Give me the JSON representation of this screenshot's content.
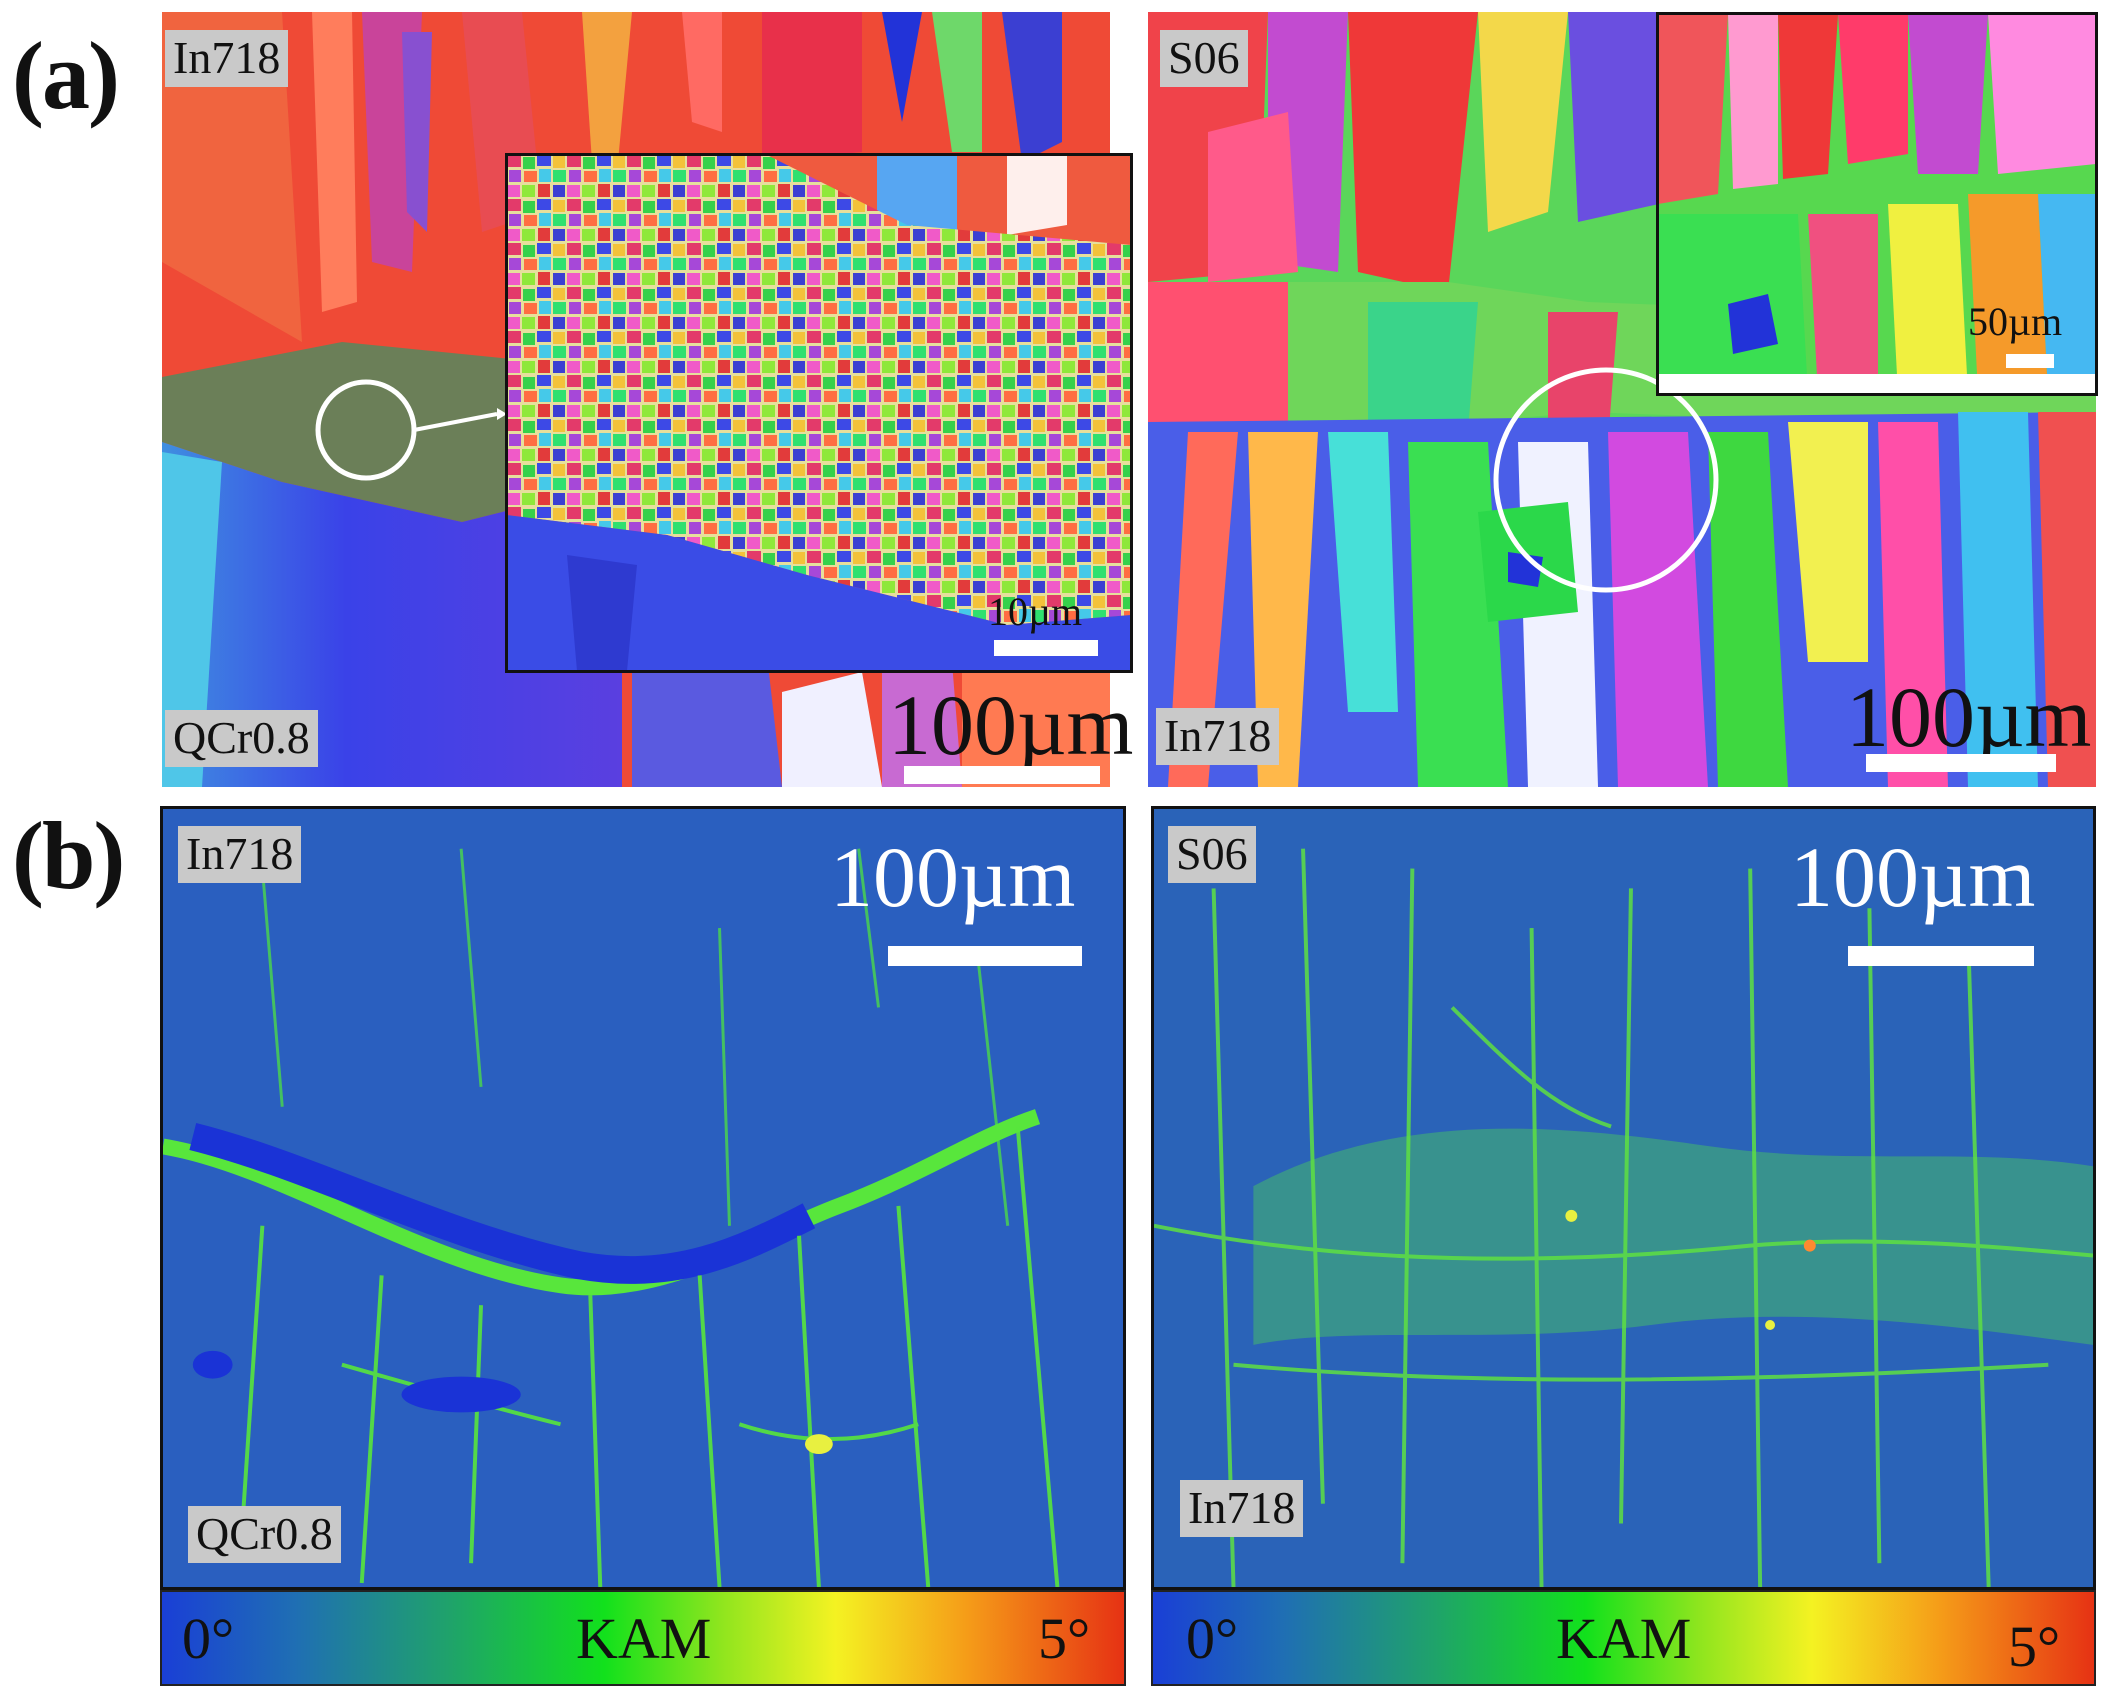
{
  "panels": {
    "a": {
      "letter": "(a)",
      "left": {
        "top_tag": "In718",
        "bottom_tag": "QCr0.8",
        "scale": "100µm",
        "inset_scale": "10µm"
      },
      "right": {
        "top_tag": "S06",
        "bottom_tag": "In718",
        "scale": "100µm",
        "inset_scale": "50µm"
      }
    },
    "b": {
      "letter": "(b)",
      "left": {
        "top_tag": "In718",
        "bottom_tag": "QCr0.8",
        "scale": "100µm"
      },
      "right": {
        "top_tag": "S06",
        "bottom_tag": "In718",
        "scale": "100µm"
      }
    }
  },
  "colorbar": {
    "min_label": "0°",
    "title": "KAM",
    "max_label": "5°"
  },
  "colors": {
    "kam_low": "#1a3fd6",
    "kam_mid": "#12e11c",
    "kam_high": "#e63214"
  }
}
